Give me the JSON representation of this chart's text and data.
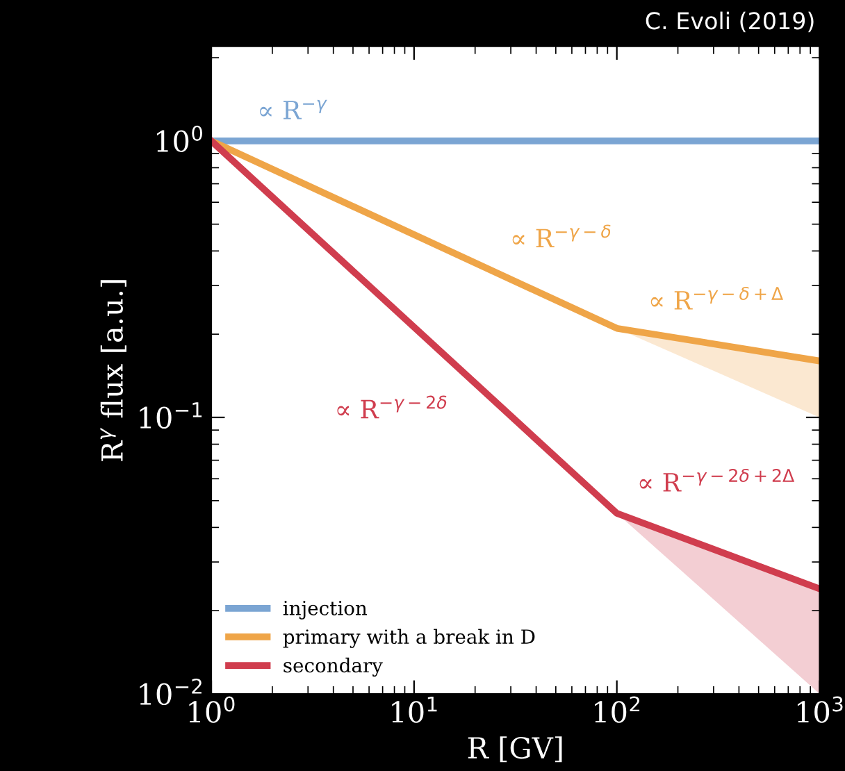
{
  "chart_data": {
    "type": "line",
    "xlabel": "R [GV]",
    "ylabel": "R$^{γ}$ flux [a.u.]",
    "log": "xy",
    "xlim": [
      1,
      1000
    ],
    "ylim": [
      0.01,
      2.2
    ],
    "xticks": [
      {
        "value": 1,
        "label": "10$^{0}$"
      },
      {
        "value": 10,
        "label": "10$^{1}$"
      },
      {
        "value": 100,
        "label": "10$^{2}$"
      },
      {
        "value": 1000,
        "label": "10$^{3}$"
      }
    ],
    "yticks": [
      {
        "value": 0.01,
        "label": "10$^{−2}$"
      },
      {
        "value": 0.1,
        "label": "10$^{−1}$"
      },
      {
        "value": 1,
        "label": "10$^{0}$"
      }
    ],
    "series": [
      {
        "name": "injection",
        "color": "#7ba5d3",
        "x": [
          1,
          1000
        ],
        "values": [
          1,
          1
        ]
      },
      {
        "name": "primary with a break in D",
        "color": "#efa548",
        "x": [
          1,
          100,
          1000
        ],
        "values": [
          1,
          0.21,
          0.16
        ],
        "lower": [
          null,
          0.21,
          0.1
        ],
        "upper": [
          null,
          0.21,
          0.16
        ]
      },
      {
        "name": "secondary",
        "color": "#d03d4e",
        "x": [
          1,
          100,
          1000
        ],
        "values": [
          1,
          0.045,
          0.024
        ],
        "lower": [
          null,
          0.045,
          0.01
        ],
        "upper": [
          null,
          0.045,
          0.024
        ]
      }
    ],
    "legend": "bottom left",
    "grid": false,
    "annotations": [
      "∝ R$^{−γ}$",
      "∝ R$^{−γ−δ}$",
      "∝ R$^{−γ−δ+Δ}$",
      "∝ R$^{−γ−2δ}$",
      "∝ R$^{−γ−2δ+2Δ}$",
      "C. Evoli (2019)"
    ]
  }
}
